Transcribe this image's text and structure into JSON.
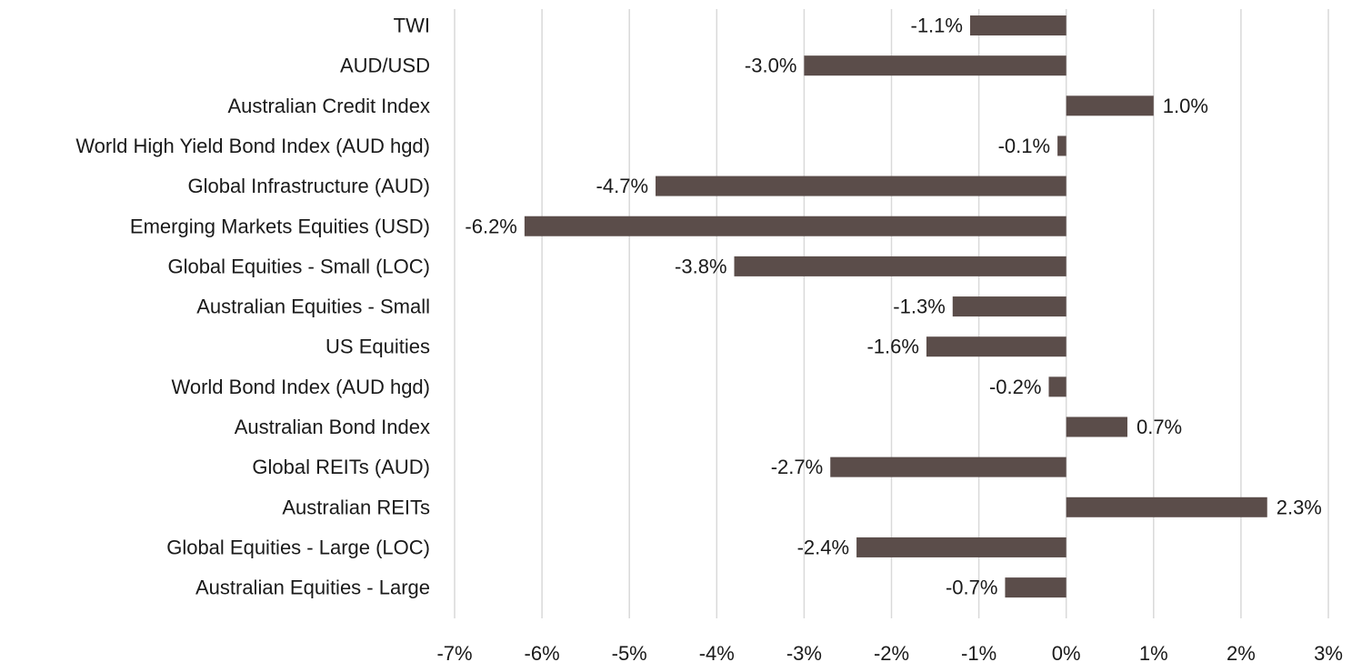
{
  "colors": {
    "bar": "#5b4d4a",
    "grid": "#d9d9d9",
    "text": "#1a1a1a",
    "background": "#ffffff"
  },
  "chart_data": {
    "type": "bar",
    "orientation": "horizontal",
    "categories": [
      "TWI",
      "AUD/USD",
      "Australian Credit Index",
      "World High Yield Bond Index (AUD hgd)",
      "Global Infrastructure (AUD)",
      "Emerging Markets Equities (USD)",
      "Global Equities - Small (LOC)",
      "Australian Equities - Small",
      "US Equities",
      "World Bond Index (AUD hgd)",
      "Australian Bond Index",
      "Global REITs (AUD)",
      "Australian REITs",
      "Global Equities - Large (LOC)",
      "Australian Equities - Large"
    ],
    "values": [
      -1.1,
      -3.0,
      1.0,
      -0.1,
      -4.7,
      -6.2,
      -3.8,
      -1.3,
      -1.6,
      -0.2,
      0.7,
      -2.7,
      2.3,
      -2.4,
      -0.7
    ],
    "data_labels": [
      "-1.1%",
      "-3.0%",
      "1.0%",
      "-0.1%",
      "-4.7%",
      "-6.2%",
      "-3.8%",
      "-1.3%",
      "-1.6%",
      "-0.2%",
      "0.7%",
      "-2.7%",
      "2.3%",
      "-2.4%",
      "-0.7%"
    ],
    "xlim": [
      -7,
      3
    ],
    "xticks": [
      -7,
      -6,
      -5,
      -4,
      -3,
      -2,
      -1,
      0,
      1,
      2,
      3
    ],
    "xtick_labels": [
      "-7%",
      "-6%",
      "-5%",
      "-4%",
      "-3%",
      "-2%",
      "-1%",
      "0%",
      "1%",
      "2%",
      "3%"
    ],
    "grid": true,
    "legend": "none",
    "title": "",
    "xlabel": "",
    "ylabel": ""
  }
}
